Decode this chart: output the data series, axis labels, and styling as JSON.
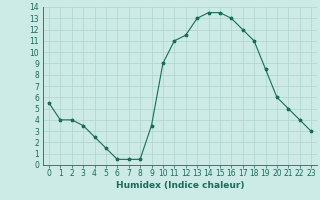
{
  "x": [
    0,
    1,
    2,
    3,
    4,
    5,
    6,
    7,
    8,
    9,
    10,
    11,
    12,
    13,
    14,
    15,
    16,
    17,
    18,
    19,
    20,
    21,
    22,
    23
  ],
  "y": [
    5.5,
    4.0,
    4.0,
    3.5,
    2.5,
    1.5,
    0.5,
    0.5,
    0.5,
    3.5,
    9.0,
    11.0,
    11.5,
    13.0,
    13.5,
    13.5,
    13.0,
    12.0,
    11.0,
    8.5,
    6.0,
    5.0,
    4.0,
    3.0
  ],
  "line_color": "#1a6b5a",
  "marker": "*",
  "bg_color": "#cceae6",
  "grid_color": "#aed4cf",
  "xlabel": "Humidex (Indice chaleur)",
  "xlim": [
    -0.5,
    23.5
  ],
  "ylim": [
    0,
    14
  ],
  "xticks": [
    0,
    1,
    2,
    3,
    4,
    5,
    6,
    7,
    8,
    9,
    10,
    11,
    12,
    13,
    14,
    15,
    16,
    17,
    18,
    19,
    20,
    21,
    22,
    23
  ],
  "yticks": [
    0,
    1,
    2,
    3,
    4,
    5,
    6,
    7,
    8,
    9,
    10,
    11,
    12,
    13,
    14
  ],
  "tick_label_fontsize": 5.5,
  "xlabel_fontsize": 6.5
}
